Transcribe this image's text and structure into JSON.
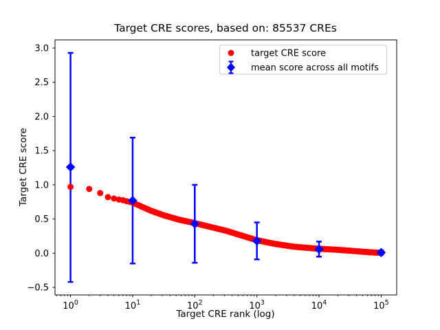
{
  "figure": {
    "background": "#ffffff"
  },
  "chart_data": {
    "type": "scatter",
    "title": "Target CRE scores, based on: 85537 CREs",
    "xlabel": "Target CRE rank (log)",
    "ylabel": "Target CRE score",
    "xscale": "log",
    "grid": false,
    "legend_position": "upper right",
    "xlim_log10": [
      -0.25,
      5.25
    ],
    "ylim": [
      -0.61,
      3.12
    ],
    "xtick_exponents": [
      0,
      1,
      2,
      3,
      4,
      5
    ],
    "yticks": [
      3.0,
      2.5,
      2.0,
      1.5,
      1.0,
      0.5,
      0.0,
      -0.5
    ],
    "colors": {
      "target": "#ff0000",
      "mean": "#0000ff",
      "spine": "#000000",
      "legend_border": "#cccccc"
    },
    "legend": [
      {
        "label": "target CRE score",
        "color": "#ff0000",
        "marker": "circle"
      },
      {
        "label": "mean score across all motifs",
        "color": "#0000ff",
        "marker": "diamond-with-errorbar"
      }
    ],
    "series": [
      {
        "name": "target CRE score",
        "type": "scatter",
        "marker": "circle",
        "color": "#ff0000",
        "curve_log10rank_vs_score": [
          [
            0.0,
            0.97
          ],
          [
            0.301,
            0.94
          ],
          [
            0.477,
            0.88
          ],
          [
            0.602,
            0.82
          ],
          [
            0.699,
            0.8
          ],
          [
            0.778,
            0.785
          ],
          [
            0.845,
            0.775
          ],
          [
            0.903,
            0.76
          ],
          [
            0.954,
            0.75
          ],
          [
            1.0,
            0.74
          ],
          [
            1.15,
            0.68
          ],
          [
            1.3,
            0.62
          ],
          [
            1.5,
            0.555
          ],
          [
            1.75,
            0.49
          ],
          [
            2.0,
            0.44
          ],
          [
            2.25,
            0.385
          ],
          [
            2.5,
            0.33
          ],
          [
            2.75,
            0.26
          ],
          [
            3.0,
            0.19
          ],
          [
            3.3,
            0.135
          ],
          [
            3.6,
            0.095
          ],
          [
            4.0,
            0.065
          ],
          [
            4.3,
            0.05
          ],
          [
            4.6,
            0.03
          ],
          [
            4.8,
            0.015
          ],
          [
            5.0,
            0.005
          ]
        ]
      },
      {
        "name": "mean score across all motifs",
        "type": "errorbar",
        "marker": "diamond",
        "color": "#0000ff",
        "points": [
          {
            "rank": 1,
            "mean": 1.26,
            "lo": -0.42,
            "hi": 2.93
          },
          {
            "rank": 10,
            "mean": 0.77,
            "lo": -0.15,
            "hi": 1.69
          },
          {
            "rank": 100,
            "mean": 0.43,
            "lo": -0.14,
            "hi": 1.0
          },
          {
            "rank": 1000,
            "mean": 0.18,
            "lo": -0.09,
            "hi": 0.45
          },
          {
            "rank": 10000,
            "mean": 0.06,
            "lo": -0.05,
            "hi": 0.17
          },
          {
            "rank": 100000,
            "mean": 0.01,
            "lo": -0.02,
            "hi": 0.04
          }
        ]
      }
    ]
  }
}
